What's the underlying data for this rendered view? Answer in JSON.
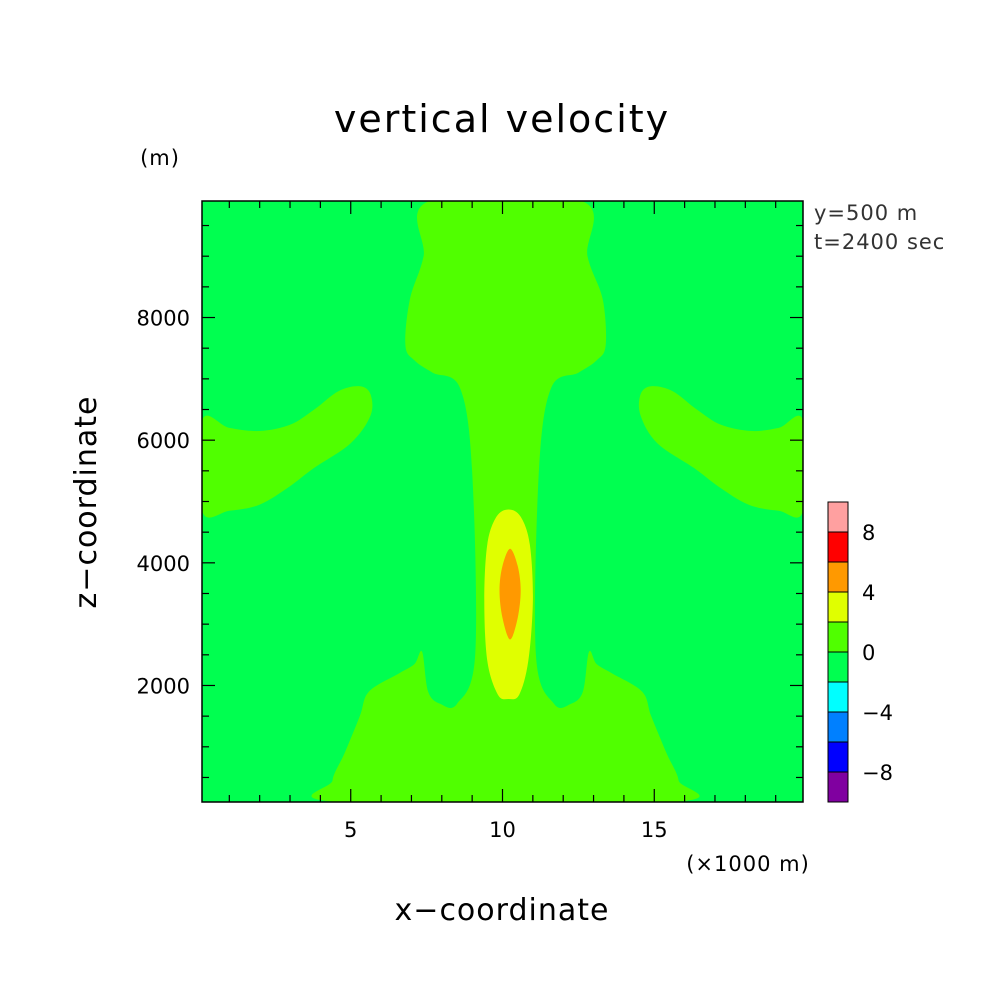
{
  "chart_data": {
    "type": "heatmap",
    "title": "vertical velocity",
    "xlabel": "x−coordinate",
    "ylabel": "z−coordinate",
    "x_unit": "(×1000 m)",
    "y_unit": "(m)",
    "annotations": [
      "y=500 m",
      "t=2400 sec"
    ],
    "xlim": [
      0.1,
      19.9
    ],
    "ylim": [
      100,
      9900
    ],
    "x_ticks": [
      {
        "value": 5,
        "label": "5"
      },
      {
        "value": 10,
        "label": "10"
      },
      {
        "value": 15,
        "label": "15"
      }
    ],
    "y_ticks": [
      {
        "value": 2000,
        "label": "2000"
      },
      {
        "value": 4000,
        "label": "4000"
      },
      {
        "value": 6000,
        "label": "6000"
      },
      {
        "value": 8000,
        "label": "8000"
      }
    ],
    "colorbar": {
      "levels": [
        -10,
        -8,
        -6,
        -4,
        -2,
        0,
        2,
        4,
        6,
        8,
        10
      ],
      "colors": [
        "#8000a0",
        "#0000ff",
        "#0080ff",
        "#00ffff",
        "#00ff50",
        "#50ff00",
        "#e0ff00",
        "#ff9900",
        "#ff0000",
        "#ffa0a0"
      ],
      "tick_labels": [
        {
          "value": -8,
          "label": "−8"
        },
        {
          "value": -4,
          "label": "−4"
        },
        {
          "value": 0,
          "label": "0"
        },
        {
          "value": 4,
          "label": "4"
        },
        {
          "value": 8,
          "label": "8"
        }
      ]
    },
    "background_color": "#00ff50",
    "regions": [
      {
        "name": "band-0-to-2-plume",
        "range": [
          0,
          2
        ],
        "color": "#50ff00",
        "points": [
          [
            4.6,
            100
          ],
          [
            4.4,
            450
          ],
          [
            4.8,
            900
          ],
          [
            5.3,
            1500
          ],
          [
            5.6,
            1900
          ],
          [
            6.6,
            2200
          ],
          [
            7.1,
            2350
          ],
          [
            7.35,
            2550
          ],
          [
            7.55,
            1900
          ],
          [
            7.95,
            1700
          ],
          [
            8.5,
            1700
          ],
          [
            9.1,
            2500
          ],
          [
            9.0,
            5500
          ],
          [
            8.6,
            6850
          ],
          [
            7.7,
            7100
          ],
          [
            7.1,
            7300
          ],
          [
            6.8,
            7550
          ],
          [
            6.95,
            8300
          ],
          [
            7.4,
            9000
          ],
          [
            7.6,
            9900
          ],
          [
            12.6,
            9900
          ],
          [
            12.8,
            9000
          ],
          [
            13.3,
            8300
          ],
          [
            13.4,
            7550
          ],
          [
            13.1,
            7300
          ],
          [
            12.5,
            7100
          ],
          [
            11.6,
            6850
          ],
          [
            11.2,
            5500
          ],
          [
            11.1,
            2500
          ],
          [
            11.7,
            1700
          ],
          [
            12.25,
            1700
          ],
          [
            12.65,
            1900
          ],
          [
            12.85,
            2550
          ],
          [
            13.1,
            2350
          ],
          [
            13.6,
            2200
          ],
          [
            14.6,
            1900
          ],
          [
            14.9,
            1500
          ],
          [
            15.4,
            900
          ],
          [
            15.8,
            450
          ],
          [
            15.6,
            100
          ]
        ]
      },
      {
        "name": "band-0-to-2-left-arm",
        "range": [
          0,
          2
        ],
        "color": "#50ff00",
        "points": [
          [
            0.1,
            4850
          ],
          [
            1.0,
            4850
          ],
          [
            2.0,
            4950
          ],
          [
            3.0,
            5250
          ],
          [
            3.8,
            5550
          ],
          [
            5.0,
            5950
          ],
          [
            5.65,
            6400
          ],
          [
            5.65,
            6750
          ],
          [
            5.3,
            6880
          ],
          [
            4.6,
            6800
          ],
          [
            3.8,
            6500
          ],
          [
            3.0,
            6250
          ],
          [
            2.0,
            6150
          ],
          [
            1.0,
            6200
          ],
          [
            0.1,
            6320
          ]
        ]
      },
      {
        "name": "band-0-to-2-right-arm",
        "range": [
          0,
          2
        ],
        "color": "#50ff00",
        "points": [
          [
            19.9,
            4850
          ],
          [
            19.1,
            4850
          ],
          [
            18.1,
            4950
          ],
          [
            17.1,
            5250
          ],
          [
            16.3,
            5550
          ],
          [
            15.1,
            5950
          ],
          [
            14.55,
            6400
          ],
          [
            14.55,
            6750
          ],
          [
            14.9,
            6880
          ],
          [
            15.6,
            6800
          ],
          [
            16.4,
            6500
          ],
          [
            17.2,
            6250
          ],
          [
            18.2,
            6150
          ],
          [
            19.1,
            6200
          ],
          [
            19.9,
            6320
          ]
        ]
      },
      {
        "name": "band-2-to-4",
        "range": [
          2,
          4
        ],
        "color": "#e0ff00",
        "points": [
          [
            10.2,
            1780
          ],
          [
            10.55,
            1850
          ],
          [
            10.85,
            2400
          ],
          [
            11.0,
            3400
          ],
          [
            10.9,
            4300
          ],
          [
            10.6,
            4750
          ],
          [
            10.2,
            4870
          ],
          [
            9.8,
            4750
          ],
          [
            9.5,
            4300
          ],
          [
            9.4,
            3400
          ],
          [
            9.5,
            2400
          ],
          [
            9.85,
            1850
          ]
        ]
      },
      {
        "name": "band-4-to-6",
        "range": [
          4,
          6
        ],
        "color": "#ff9900",
        "points": [
          [
            10.25,
            2750
          ],
          [
            10.5,
            3100
          ],
          [
            10.6,
            3550
          ],
          [
            10.5,
            3950
          ],
          [
            10.25,
            4230
          ],
          [
            10.0,
            3950
          ],
          [
            9.9,
            3550
          ],
          [
            10.0,
            3100
          ]
        ]
      }
    ]
  }
}
